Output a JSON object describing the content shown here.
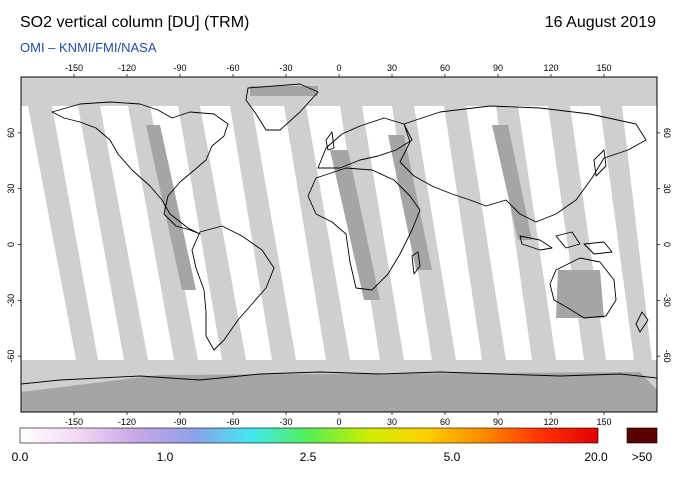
{
  "header": {
    "title": "SO2 vertical column [DU] (TRM)",
    "date": "16 August 2019",
    "credit": "OMI  –  KNMI/FMI/NASA"
  },
  "map": {
    "lon_ticks": [
      -150,
      -120,
      -90,
      -60,
      -30,
      0,
      30,
      60,
      90,
      120,
      150
    ],
    "lat_ticks": [
      60,
      30,
      0,
      -30,
      -60
    ],
    "lon_range": [
      -180,
      180
    ],
    "lat_range": [
      -90,
      90
    ],
    "colors": {
      "missing_data": "#cfcfcf",
      "dark_swath": "#a5a5a5",
      "clean": "#ffffff",
      "coast": "#000000"
    }
  },
  "colorbar": {
    "labels": [
      "0.0",
      "1.0",
      "2.5",
      "5.0",
      "20.0",
      ">50"
    ],
    "overflow_color": "#5a0000",
    "gradient": [
      "#ffffff",
      "#f3d8f3",
      "#c9a6e6",
      "#8fa0ea",
      "#3ee8f0",
      "#55ee55",
      "#c8ee00",
      "#ffd000",
      "#ff8c00",
      "#ff3300",
      "#e00000"
    ]
  }
}
